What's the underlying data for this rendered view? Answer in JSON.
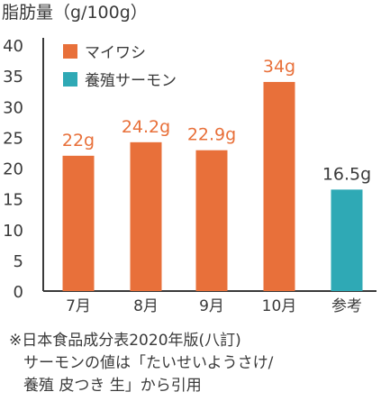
{
  "chart_data": {
    "type": "bar",
    "ylabel": "脂肪量（g/100g）",
    "categories": [
      "7月",
      "8月",
      "9月",
      "10月",
      "参考"
    ],
    "ylim": [
      0,
      40
    ],
    "yticks": [
      0,
      5,
      10,
      15,
      20,
      25,
      30,
      35,
      40
    ],
    "grid": false,
    "legend_position": "top-left",
    "series": [
      {
        "name": "マイワシ",
        "color": "#e8703a",
        "values": [
          22,
          24.2,
          22.9,
          34,
          null
        ],
        "labels": [
          "22g",
          "24.2g",
          "22.9g",
          "34g",
          ""
        ]
      },
      {
        "name": "養殖サーモン",
        "color": "#2fa9b5",
        "values": [
          null,
          null,
          null,
          null,
          16.5
        ],
        "labels": [
          "",
          "",
          "",
          "",
          "16.5g"
        ]
      }
    ]
  },
  "footnote": {
    "line1": "※日本食品成分表2020年版(八訂)",
    "line2": "サーモンの値は「たいせいようさけ/",
    "line3": "養殖 皮つき 生」から引用"
  },
  "colors": {
    "axis": "#3a3a3a",
    "text": "#3a3a3a",
    "label_orange": "#e8703a",
    "label_dark": "#3a3a3a"
  }
}
